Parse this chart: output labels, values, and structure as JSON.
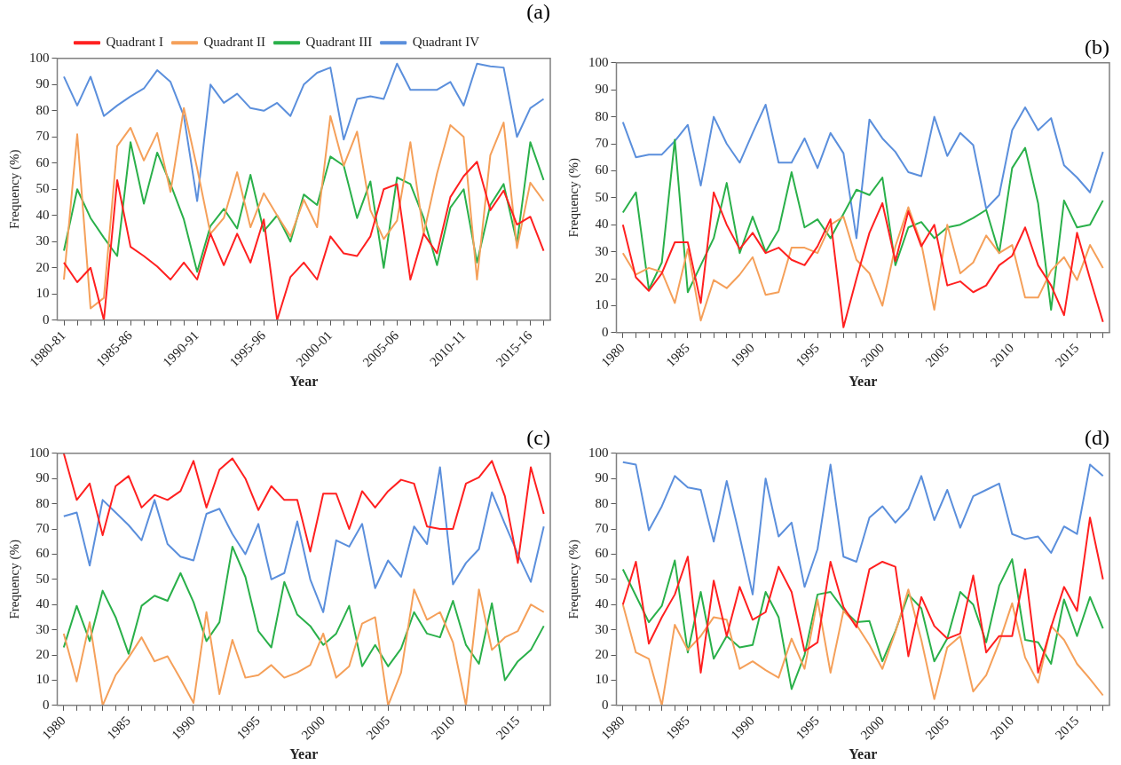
{
  "chart_data": [
    {
      "type": "line",
      "title": "(a)",
      "xlabel": "Year",
      "ylabel": "Frequency (%)",
      "legend": "top",
      "ylim": [
        0,
        100
      ],
      "yticks": [
        0,
        10,
        20,
        30,
        40,
        50,
        60,
        70,
        80,
        90,
        100
      ],
      "categories": [
        "1980-81",
        null,
        null,
        null,
        null,
        "1985-86",
        null,
        null,
        null,
        null,
        "1990-91",
        null,
        null,
        null,
        null,
        "1995-96",
        null,
        null,
        null,
        null,
        "2000-01",
        null,
        null,
        null,
        null,
        "2005-06",
        null,
        null,
        null,
        null,
        "2010-11",
        null,
        null,
        null,
        null,
        "2015-16",
        null
      ],
      "series": [
        {
          "name": "Quadrant I",
          "color": "#ff2020",
          "values": [
            22,
            14.5,
            20,
            0,
            53.5,
            28,
            24.5,
            20.5,
            15.5,
            22,
            15.5,
            33,
            21,
            33,
            22,
            38.5,
            0,
            16.5,
            22,
            15.5,
            32,
            25.5,
            24.5,
            32,
            50,
            52,
            15.5,
            33,
            25.5,
            47,
            55,
            60.5,
            42,
            49.5,
            36.5,
            39.5,
            26.5
          ]
        },
        {
          "name": "Quadrant II",
          "color": "#f5a05a",
          "values": [
            15.5,
            71,
            4.5,
            8.5,
            66.5,
            73.5,
            61,
            71.5,
            49,
            81,
            58,
            33,
            39,
            56.5,
            35.5,
            48.5,
            40,
            32,
            46,
            35.5,
            78,
            59,
            72,
            42,
            31,
            38,
            68,
            33,
            56,
            74.5,
            70,
            15.5,
            63,
            75.5,
            27.5,
            52.5,
            45.5
          ]
        },
        {
          "name": "Quadrant III",
          "color": "#2ab04a",
          "values": [
            26.5,
            50,
            39,
            31.5,
            24.5,
            68,
            44.5,
            64,
            52,
            38.5,
            18.5,
            36,
            42.5,
            35,
            55.5,
            34,
            40,
            30,
            48,
            44,
            62.5,
            59,
            39,
            53,
            20,
            54.5,
            52,
            39,
            21,
            43,
            50,
            22,
            44,
            52,
            29.5,
            68,
            53.5
          ]
        },
        {
          "name": "Quadrant IV",
          "color": "#5b8fdc",
          "values": [
            93,
            82,
            93,
            78,
            82,
            85.5,
            88.5,
            95.5,
            91,
            78,
            45.5,
            90,
            83,
            86.5,
            81,
            80,
            83,
            78,
            90,
            94.5,
            96.5,
            69,
            84.5,
            85.5,
            84.5,
            98,
            88,
            88,
            88,
            91,
            82,
            98,
            97,
            96.5,
            70,
            81,
            84.5
          ]
        }
      ]
    },
    {
      "type": "line",
      "title": "(b)",
      "xlabel": "Year",
      "ylabel": "Frequency (%)",
      "ylim": [
        0,
        100
      ],
      "yticks": [
        0,
        10,
        20,
        30,
        40,
        50,
        60,
        70,
        80,
        90,
        100
      ],
      "categories": [
        "1980",
        null,
        null,
        null,
        null,
        "1985",
        null,
        null,
        null,
        null,
        "1990",
        null,
        null,
        null,
        null,
        "1995",
        null,
        null,
        null,
        null,
        "2000",
        null,
        null,
        null,
        null,
        "2005",
        null,
        null,
        null,
        null,
        "2010",
        null,
        null,
        null,
        null,
        "2015",
        null,
        null
      ],
      "series": [
        {
          "color": "#ff2020",
          "values": [
            40,
            20.5,
            15.5,
            22,
            33.5,
            33.5,
            11,
            52,
            40,
            31,
            37,
            29.5,
            31.5,
            27,
            25,
            32,
            42,
            2,
            20,
            37,
            48,
            26.5,
            45,
            32,
            40,
            17.5,
            19,
            15,
            17.5,
            25,
            28.5,
            39,
            25,
            17.5,
            6.5,
            37,
            20,
            4
          ]
        },
        {
          "color": "#f5a05a",
          "values": [
            29.5,
            21.5,
            24,
            22.5,
            11,
            31,
            4.5,
            19.5,
            16.5,
            21.5,
            28,
            14,
            15,
            31.5,
            31.5,
            29.5,
            40,
            43,
            27,
            22,
            10,
            32,
            46.5,
            33,
            8.5,
            40,
            22,
            26,
            36,
            29.5,
            32.5,
            13,
            13,
            23,
            28,
            19.5,
            32.5,
            24
          ]
        },
        {
          "color": "#2ab04a",
          "values": [
            44.5,
            52,
            16,
            26,
            71.5,
            15,
            25,
            35,
            55.5,
            29.5,
            43,
            30,
            38,
            59.5,
            39,
            42,
            35,
            44,
            53,
            51,
            57.5,
            25,
            39,
            41,
            35,
            39,
            40,
            42.5,
            45.5,
            29.5,
            61,
            68.5,
            48,
            8.5,
            49,
            39,
            40,
            49
          ]
        },
        {
          "color": "#5b8fdc",
          "values": [
            78,
            65,
            66,
            66,
            71,
            77,
            54.5,
            80,
            70,
            63,
            74,
            84.5,
            63,
            63,
            72,
            61,
            74,
            66.5,
            35,
            79,
            72,
            67,
            59.5,
            58,
            80,
            65.5,
            74,
            69.5,
            46,
            51,
            75,
            83.5,
            75,
            79.5,
            62,
            57.5,
            52,
            67
          ]
        }
      ]
    },
    {
      "type": "line",
      "title": "(c)",
      "xlabel": "Year",
      "ylabel": "Frequency (%)",
      "ylim": [
        0,
        100
      ],
      "yticks": [
        0,
        10,
        20,
        30,
        40,
        50,
        60,
        70,
        80,
        90,
        100
      ],
      "categories": [
        "1980",
        null,
        null,
        null,
        null,
        "1985",
        null,
        null,
        null,
        null,
        "1990",
        null,
        null,
        null,
        null,
        "1995",
        null,
        null,
        null,
        null,
        "2000",
        null,
        null,
        null,
        null,
        "2005",
        null,
        null,
        null,
        null,
        "2010",
        null,
        null,
        null,
        null,
        "2015",
        null,
        null
      ],
      "series": [
        {
          "color": "#ff2020",
          "values": [
            100,
            81.5,
            88,
            67.5,
            87,
            91,
            78.5,
            83.5,
            81.5,
            85,
            97,
            78.5,
            93.5,
            98,
            90,
            77.5,
            87,
            81.5,
            81.5,
            61,
            84,
            84,
            70,
            85,
            78.5,
            85,
            89.5,
            88,
            71,
            70,
            70,
            88,
            90.5,
            97,
            83,
            56.5,
            94.5,
            76
          ]
        },
        {
          "color": "#f5a05a",
          "values": [
            28.5,
            9.5,
            33,
            0,
            12,
            19,
            27,
            17.5,
            19.5,
            10.5,
            1,
            37,
            4.5,
            26,
            11,
            12,
            16,
            11,
            13,
            16,
            28.5,
            11,
            15.5,
            32.5,
            35,
            0,
            13,
            46,
            34,
            37,
            25,
            0,
            46,
            22,
            27,
            29.5,
            40,
            37
          ]
        },
        {
          "color": "#2ab04a",
          "values": [
            23,
            39.5,
            25.5,
            45.5,
            35,
            20.5,
            39.5,
            43.5,
            41.5,
            52.5,
            41,
            25.5,
            33,
            63,
            51,
            29.5,
            23,
            49,
            36,
            31.5,
            24,
            28.5,
            39.5,
            15.5,
            24,
            15.5,
            22.5,
            37,
            28.5,
            27,
            41.5,
            24,
            16.5,
            40.5,
            10,
            17.5,
            22,
            31.5
          ]
        },
        {
          "color": "#5b8fdc",
          "values": [
            75,
            76.5,
            55.5,
            81.5,
            76.5,
            71.5,
            65.5,
            81.5,
            64,
            59,
            57.5,
            76,
            78,
            68,
            60,
            72,
            50,
            52.5,
            73,
            50,
            37,
            65.5,
            63,
            72,
            46.5,
            57.5,
            51,
            71,
            64,
            94.5,
            48,
            56.5,
            62,
            84.5,
            72,
            60,
            49,
            71
          ]
        }
      ]
    },
    {
      "type": "line",
      "title": "(d)",
      "xlabel": "Year",
      "ylabel": "Frequency (%)",
      "ylim": [
        0,
        100
      ],
      "yticks": [
        0,
        10,
        20,
        30,
        40,
        50,
        60,
        70,
        80,
        90,
        100
      ],
      "categories": [
        "1980",
        null,
        null,
        null,
        null,
        "1985",
        null,
        null,
        null,
        null,
        "1990",
        null,
        null,
        null,
        null,
        "1995",
        null,
        null,
        null,
        null,
        "2000",
        null,
        null,
        null,
        null,
        "2005",
        null,
        null,
        null,
        null,
        "2010",
        null,
        null,
        null,
        null,
        "2015",
        null,
        null
      ],
      "series": [
        {
          "color": "#ff2020",
          "values": [
            40,
            57,
            24.5,
            35,
            44,
            59,
            13,
            49.5,
            27.5,
            47,
            34,
            37,
            55,
            45,
            21.5,
            25,
            57,
            39,
            31,
            54,
            57,
            55,
            19.5,
            43,
            31.5,
            26.5,
            28.5,
            51.5,
            21,
            27.5,
            27.5,
            54,
            13,
            31,
            47,
            37.5,
            74.5,
            50
          ]
        },
        {
          "color": "#f5a05a",
          "values": [
            40,
            21,
            18.5,
            0,
            32,
            22,
            27.5,
            35,
            34,
            14.5,
            17.5,
            14,
            11,
            26.5,
            14.5,
            42,
            13,
            37.5,
            32,
            24,
            14.5,
            29,
            46,
            26,
            2.5,
            23,
            27.5,
            5.5,
            12,
            25,
            40.5,
            19,
            9,
            31.5,
            26,
            16.5,
            10.5,
            4
          ]
        },
        {
          "color": "#2ab04a",
          "values": [
            54,
            43.5,
            33,
            39.5,
            57.5,
            21,
            45,
            18.5,
            27.5,
            23,
            24,
            45,
            35,
            6.5,
            20,
            44,
            45,
            38,
            33,
            33.5,
            17.5,
            29.5,
            44,
            38.5,
            17.5,
            26.5,
            45,
            40,
            25,
            47.5,
            58,
            26,
            25,
            16.5,
            42,
            27.5,
            43,
            30.5
          ]
        },
        {
          "color": "#5b8fdc",
          "values": [
            96.5,
            95.5,
            69.5,
            79,
            91,
            86.5,
            85.5,
            65,
            89,
            67,
            44,
            90,
            67,
            72.5,
            47,
            62,
            95.5,
            59,
            57,
            74.5,
            79,
            72.5,
            78,
            91,
            73.5,
            85.5,
            70.5,
            83,
            85.5,
            88,
            68,
            66,
            67,
            60.5,
            71,
            68,
            95.5,
            91
          ]
        }
      ]
    }
  ]
}
